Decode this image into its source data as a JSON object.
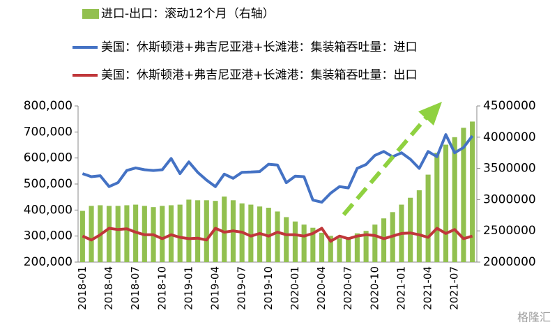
{
  "chart_data": {
    "type": "bar_line",
    "categories": [
      "2018-01",
      null,
      null,
      "2018-04",
      null,
      null,
      "2018-07",
      null,
      null,
      "2018-10",
      null,
      null,
      "2019-01",
      null,
      null,
      "2019-04",
      null,
      null,
      "2019-07",
      null,
      null,
      "2019-10",
      null,
      null,
      "2020-01",
      null,
      null,
      "2020-04",
      null,
      null,
      "2020-07",
      null,
      null,
      "2020-10",
      null,
      null,
      "2021-01",
      null,
      null,
      "2021-04",
      null,
      null,
      "2021-07",
      null,
      null
    ],
    "series": [
      {
        "name": "进口-出口：滚动12个月（右轴）",
        "type": "bar",
        "axis": "y2",
        "color": "#92c04f",
        "values": [
          2820000,
          2900000,
          2910000,
          2900000,
          2900000,
          2910000,
          2920000,
          2900000,
          2880000,
          2900000,
          2910000,
          2920000,
          3000000,
          2990000,
          2990000,
          2980000,
          3050000,
          2990000,
          2940000,
          2920000,
          2890000,
          2870000,
          2810000,
          2720000,
          2650000,
          2600000,
          2550000,
          2470000,
          2420000,
          2380000,
          2400000,
          2460000,
          2500000,
          2600000,
          2700000,
          2800000,
          2920000,
          3030000,
          3150000,
          3400000,
          3750000,
          3880000,
          4000000,
          4150000,
          4250000
        ]
      },
      {
        "name": "美国：休斯顿港+弗吉尼亚港+长滩港：集装箱吞吐量：进口",
        "type": "line",
        "axis": "y",
        "color": "#4472c4",
        "values": [
          540000,
          528000,
          532000,
          490000,
          505000,
          552000,
          562000,
          555000,
          552000,
          555000,
          598000,
          540000,
          585000,
          545000,
          515000,
          490000,
          538000,
          522000,
          545000,
          546000,
          548000,
          576000,
          573000,
          505000,
          530000,
          528000,
          438000,
          430000,
          465000,
          490000,
          485000,
          560000,
          575000,
          610000,
          625000,
          605000,
          620000,
          595000,
          560000,
          625000,
          605000,
          690000,
          620000,
          640000,
          685000
        ]
      },
      {
        "name": "美国：休斯顿港+弗吉尼亚港+长滩港：集装箱吞吐量：出口",
        "type": "line",
        "axis": "y",
        "color": "#c0373a",
        "values": [
          300000,
          285000,
          305000,
          330000,
          325000,
          328000,
          315000,
          305000,
          305000,
          290000,
          305000,
          295000,
          290000,
          292000,
          285000,
          330000,
          315000,
          320000,
          315000,
          300000,
          310000,
          300000,
          315000,
          305000,
          305000,
          300000,
          310000,
          330000,
          280000,
          300000,
          290000,
          300000,
          305000,
          302000,
          290000,
          300000,
          310000,
          312000,
          305000,
          295000,
          330000,
          310000,
          325000,
          290000,
          300000
        ]
      }
    ],
    "ylim": [
      200000,
      800000
    ],
    "yticks": [
      {
        "value": 200000,
        "label": "200,000"
      },
      {
        "value": 300000,
        "label": "300,000"
      },
      {
        "value": 400000,
        "label": "400,000"
      },
      {
        "value": 500000,
        "label": "500,000"
      },
      {
        "value": 600000,
        "label": "600,000"
      },
      {
        "value": 700000,
        "label": "700,000"
      },
      {
        "value": 800000,
        "label": "800,000"
      }
    ],
    "y2lim": [
      2000000,
      4500000
    ],
    "y2ticks": [
      2000000,
      2500000,
      3000000,
      3500000,
      4000000,
      4500000
    ],
    "watermark": "格隆汇"
  }
}
